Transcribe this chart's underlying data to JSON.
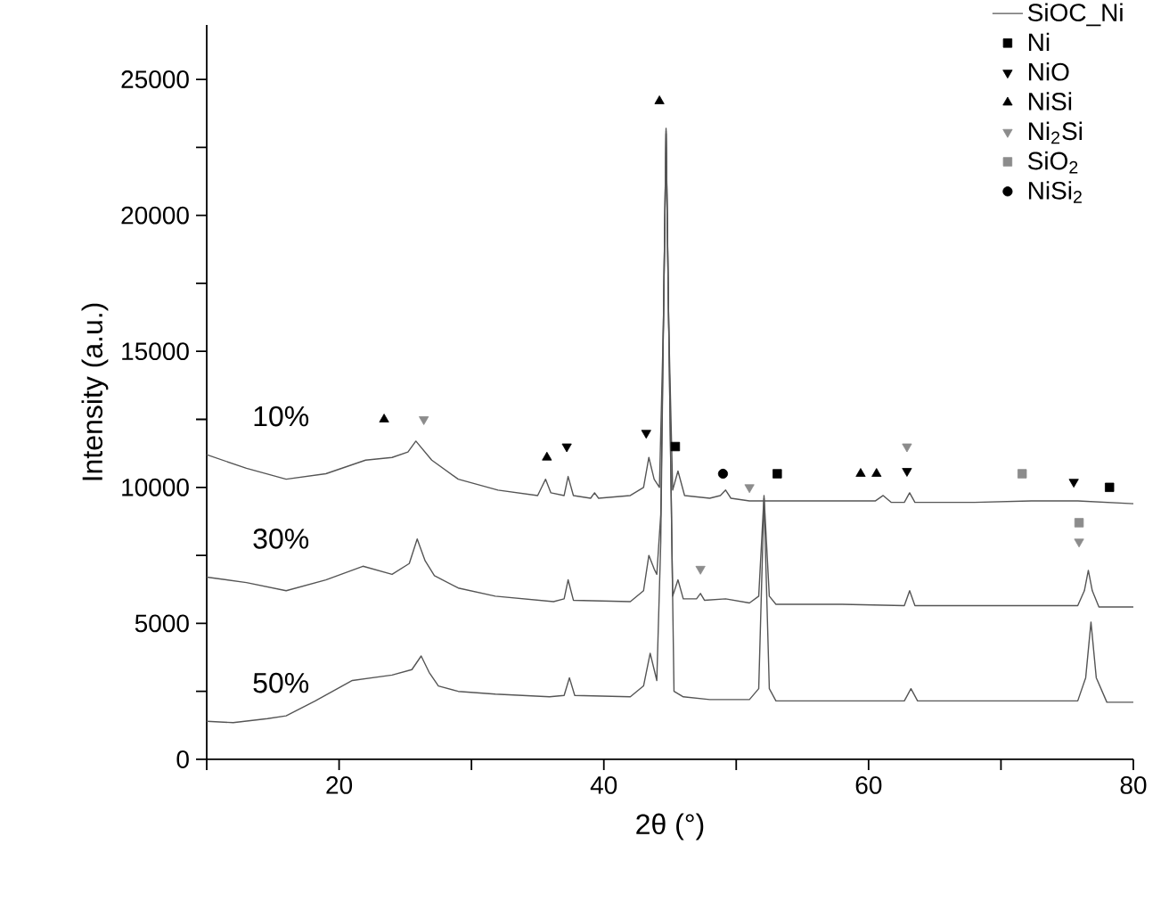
{
  "chart_data": {
    "type": "line",
    "xlabel": "2θ (°)",
    "ylabel": "Intensity (a.u.)",
    "xlim": [
      10,
      80
    ],
    "ylim": [
      0,
      27000
    ],
    "xticks": [
      {
        "value": 10,
        "label": null
      },
      20,
      {
        "value": 30,
        "label": null
      },
      40,
      {
        "value": 50,
        "label": null
      },
      60,
      {
        "value": 70,
        "label": null
      },
      80
    ],
    "yticks": [
      0,
      {
        "value": 2500,
        "label": null
      },
      5000,
      {
        "value": 7500,
        "label": null
      },
      10000,
      {
        "value": 12500,
        "label": null
      },
      15000,
      {
        "value": 17500,
        "label": null
      },
      20000,
      {
        "value": 22500,
        "label": null
      },
      25000
    ],
    "legend": "top right",
    "grid": false,
    "line_style": "solid",
    "series": [
      {
        "name": "SiOC_Ni",
        "color": "#555555",
        "x": [
          10,
          13,
          16,
          19,
          22,
          24,
          25.2,
          25.8,
          27,
          29,
          32,
          35,
          35.3,
          35.6,
          36,
          37,
          37.3,
          37.7,
          39,
          39.3,
          39.6,
          42,
          43,
          43.4,
          43.8,
          44.2,
          44.5,
          44.7,
          44.9,
          45.2,
          45.6,
          46.1,
          48,
          48.8,
          49.2,
          49.6,
          51,
          53,
          55,
          58,
          60.5,
          61.1,
          61.7,
          62.7,
          63.1,
          63.5,
          68,
          72.3,
          75.8,
          80
        ],
        "values": [
          11200,
          10700,
          10300,
          10500,
          11000,
          11100,
          11300,
          11700,
          11000,
          10300,
          9900,
          9700,
          10000,
          10300,
          9800,
          9700,
          10400,
          9700,
          9600,
          9800,
          9600,
          9700,
          10000,
          11100,
          10300,
          10000,
          16000,
          23200,
          16000,
          9900,
          10600,
          9700,
          9600,
          9700,
          9900,
          9600,
          9500,
          9500,
          9500,
          9500,
          9500,
          9700,
          9450,
          9450,
          9800,
          9450,
          9450,
          9500,
          9500,
          9400
        ]
      },
      {
        "color": "#555555",
        "x": [
          10,
          13,
          16,
          19,
          21.8,
          24,
          25.3,
          25.9,
          26.5,
          27.2,
          29,
          31.8,
          36.2,
          37,
          37.3,
          37.7,
          42,
          43,
          43.4,
          43.8,
          44.0,
          44.3,
          44.5,
          44.7,
          44.9,
          45.2,
          45.6,
          46,
          47,
          47.3,
          47.6,
          49.2,
          51,
          51.7,
          52.1,
          52.5,
          53,
          58,
          62.7,
          63.1,
          63.5,
          70,
          75.8,
          76.3,
          76.6,
          76.9,
          77.4,
          80
        ],
        "values": [
          6700,
          6500,
          6200,
          6600,
          7100,
          6800,
          7200,
          8100,
          7300,
          6750,
          6300,
          6000,
          5800,
          5900,
          6600,
          5850,
          5800,
          6200,
          7500,
          7000,
          6800,
          9000,
          16000,
          23100,
          16000,
          6000,
          6600,
          5900,
          5900,
          6100,
          5850,
          5900,
          5750,
          6000,
          9700,
          6000,
          5700,
          5700,
          5650,
          6200,
          5650,
          5650,
          5650,
          6200,
          6950,
          6200,
          5600,
          5600
        ]
      },
      {
        "color": "#555555",
        "x": [
          10,
          12,
          14.6,
          16,
          18.2,
          21,
          24,
          25.5,
          26.2,
          26.8,
          27.5,
          29,
          31.8,
          35.9,
          37,
          37.4,
          37.8,
          42,
          43,
          43.5,
          43.8,
          44.0,
          44.3,
          44.5,
          44.7,
          44.9,
          45.3,
          46,
          48,
          51,
          51.7,
          52.1,
          52.5,
          53,
          58,
          62.7,
          63.2,
          63.7,
          70,
          75.8,
          76.4,
          76.8,
          77.2,
          78,
          80
        ],
        "values": [
          1400,
          1350,
          1500,
          1600,
          2150,
          2900,
          3100,
          3300,
          3800,
          3200,
          2700,
          2500,
          2400,
          2300,
          2350,
          3000,
          2350,
          2300,
          2700,
          3900,
          3300,
          2900,
          8000,
          16000,
          23000,
          16000,
          2500,
          2300,
          2200,
          2200,
          2600,
          9600,
          2600,
          2150,
          2150,
          2150,
          2600,
          2150,
          2150,
          2150,
          3000,
          5050,
          3000,
          2100,
          2100
        ]
      },
      {
        "name": "Ni",
        "type": "scatter",
        "marker": "square",
        "color": "#000000",
        "x": [
          45.4,
          53.1,
          78.2
        ],
        "values": [
          11500,
          10500,
          10000
        ]
      },
      {
        "name": "NiO",
        "type": "scatter",
        "marker": "triangle-down",
        "color": "#000000",
        "x": [
          37.2,
          43.2,
          62.9,
          75.5
        ],
        "values": [
          11500,
          12000,
          10600,
          10200
        ]
      },
      {
        "name": "NiSi",
        "type": "scatter",
        "marker": "triangle",
        "color": "#000000",
        "x": [
          23.4,
          35.7,
          44.2,
          59.4,
          60.6
        ],
        "values": [
          12500,
          11100,
          24200,
          10500,
          10500
        ]
      },
      {
        "name": "Ni$_{2}$Si",
        "type": "scatter",
        "marker": "triangle-down",
        "color": "#8c8c8c",
        "x": [
          26.4,
          47.3,
          51.0,
          62.9,
          75.9
        ],
        "values": [
          12500,
          7000,
          10000,
          11500,
          8000
        ]
      },
      {
        "name": "SiO$_{2}$",
        "type": "scatter",
        "marker": "square",
        "color": "#8c8c8c",
        "x": [
          71.6,
          75.9
        ],
        "values": [
          10500,
          8700
        ]
      },
      {
        "name": "NiSi$_{2}$",
        "type": "scatter",
        "marker": "circle",
        "color": "#000000",
        "x": [
          49.0
        ],
        "values": [
          10500
        ]
      }
    ],
    "annotations": [
      "10%",
      "30%",
      "50%"
    ]
  }
}
